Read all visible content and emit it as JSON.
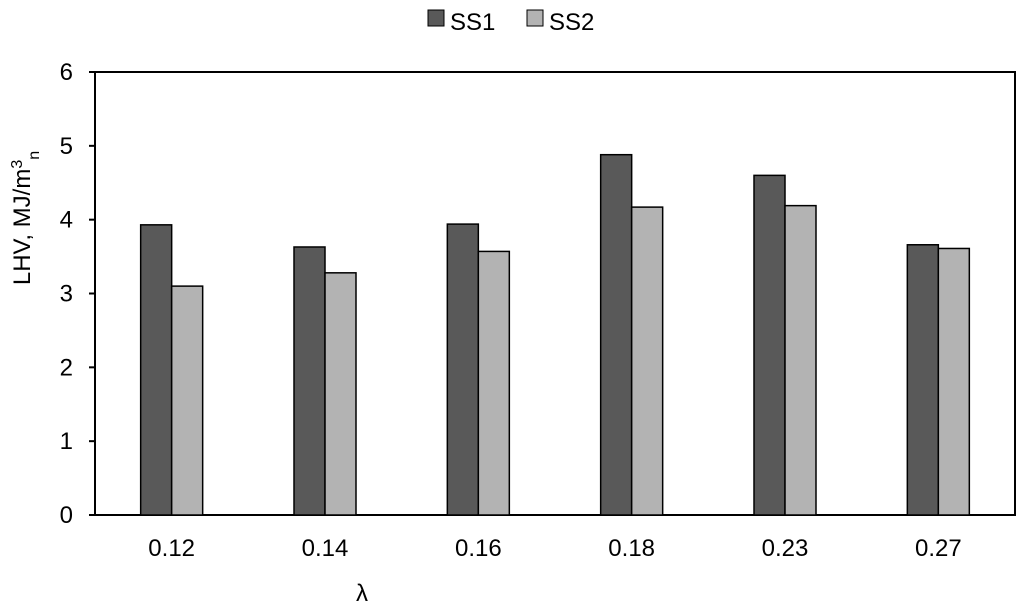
{
  "chart_data": {
    "type": "bar",
    "categories": [
      "0.12",
      "0.14",
      "0.16",
      "0.18",
      "0.23",
      "0.27"
    ],
    "series": [
      {
        "name": "SS1",
        "color": "#595959",
        "values": [
          3.93,
          3.63,
          3.94,
          4.88,
          4.6,
          3.66
        ]
      },
      {
        "name": "SS2",
        "color": "#b3b3b3",
        "values": [
          3.1,
          3.28,
          3.57,
          4.17,
          4.19,
          3.61
        ]
      }
    ],
    "xlabel": "λ",
    "ylabel": {
      "main": "LHV, MJ/m",
      "superscript": "3",
      "subscript": "n"
    },
    "ylim": [
      0,
      6
    ],
    "yticks": [
      0,
      1,
      2,
      3,
      4,
      5,
      6
    ],
    "grid": false,
    "legend_position": "top-center"
  }
}
